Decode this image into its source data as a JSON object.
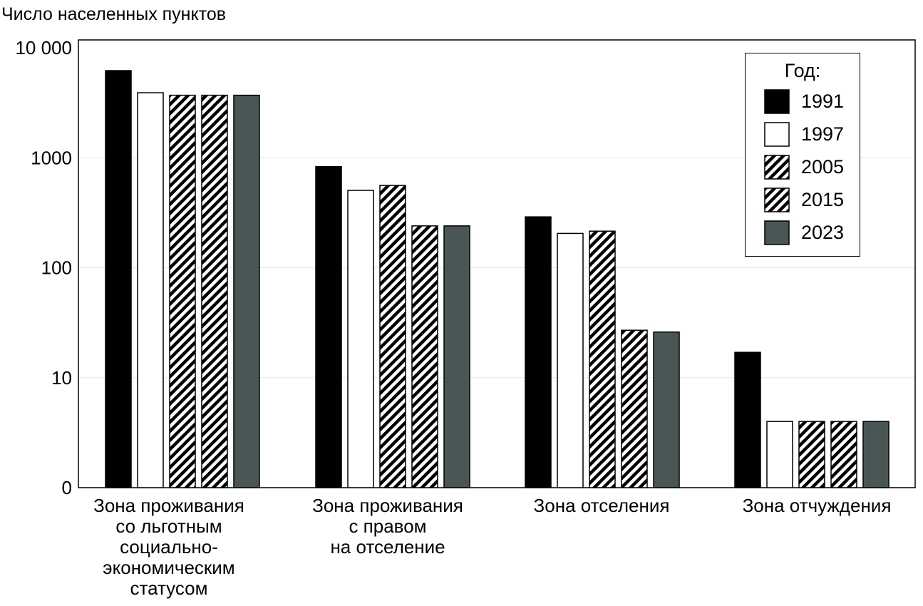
{
  "chart_data": {
    "type": "bar",
    "title": "",
    "ylabel": "Число населенных пунктов",
    "xlabel": "",
    "yscale": "log",
    "ylim": [
      1,
      10000
    ],
    "y_ticks": [
      {
        "value": 10000,
        "label": "10 000"
      },
      {
        "value": 1000,
        "label": "1000"
      },
      {
        "value": 100,
        "label": "100"
      },
      {
        "value": 10,
        "label": "10"
      },
      {
        "value": 1,
        "label": "0"
      }
    ],
    "categories": [
      [
        "Зона проживания",
        "со льготным",
        "социально-",
        "экономическим",
        "статусом"
      ],
      [
        "Зона проживания",
        "с правом",
        "на отселение"
      ],
      [
        "Зона отселения"
      ],
      [
        "Зона отчуждения"
      ]
    ],
    "legend_title": "Год:",
    "legend_position": "top-right",
    "grid": true,
    "series": [
      {
        "name": "1991",
        "fill": "solid",
        "color": "#000000",
        "values": [
          6200,
          830,
          290,
          17
        ]
      },
      {
        "name": "1997",
        "fill": "solid",
        "color": "#ffffff",
        "values": [
          3900,
          505,
          205,
          4
        ]
      },
      {
        "name": "2005",
        "fill": "hatch",
        "color": "#000000",
        "values": [
          3700,
          560,
          215,
          4
        ]
      },
      {
        "name": "2015",
        "fill": "hatch",
        "color": "#000000",
        "values": [
          3700,
          240,
          27,
          4
        ]
      },
      {
        "name": "2023",
        "fill": "solid",
        "color": "#4a5656",
        "values": [
          3700,
          240,
          26,
          4
        ]
      }
    ]
  }
}
